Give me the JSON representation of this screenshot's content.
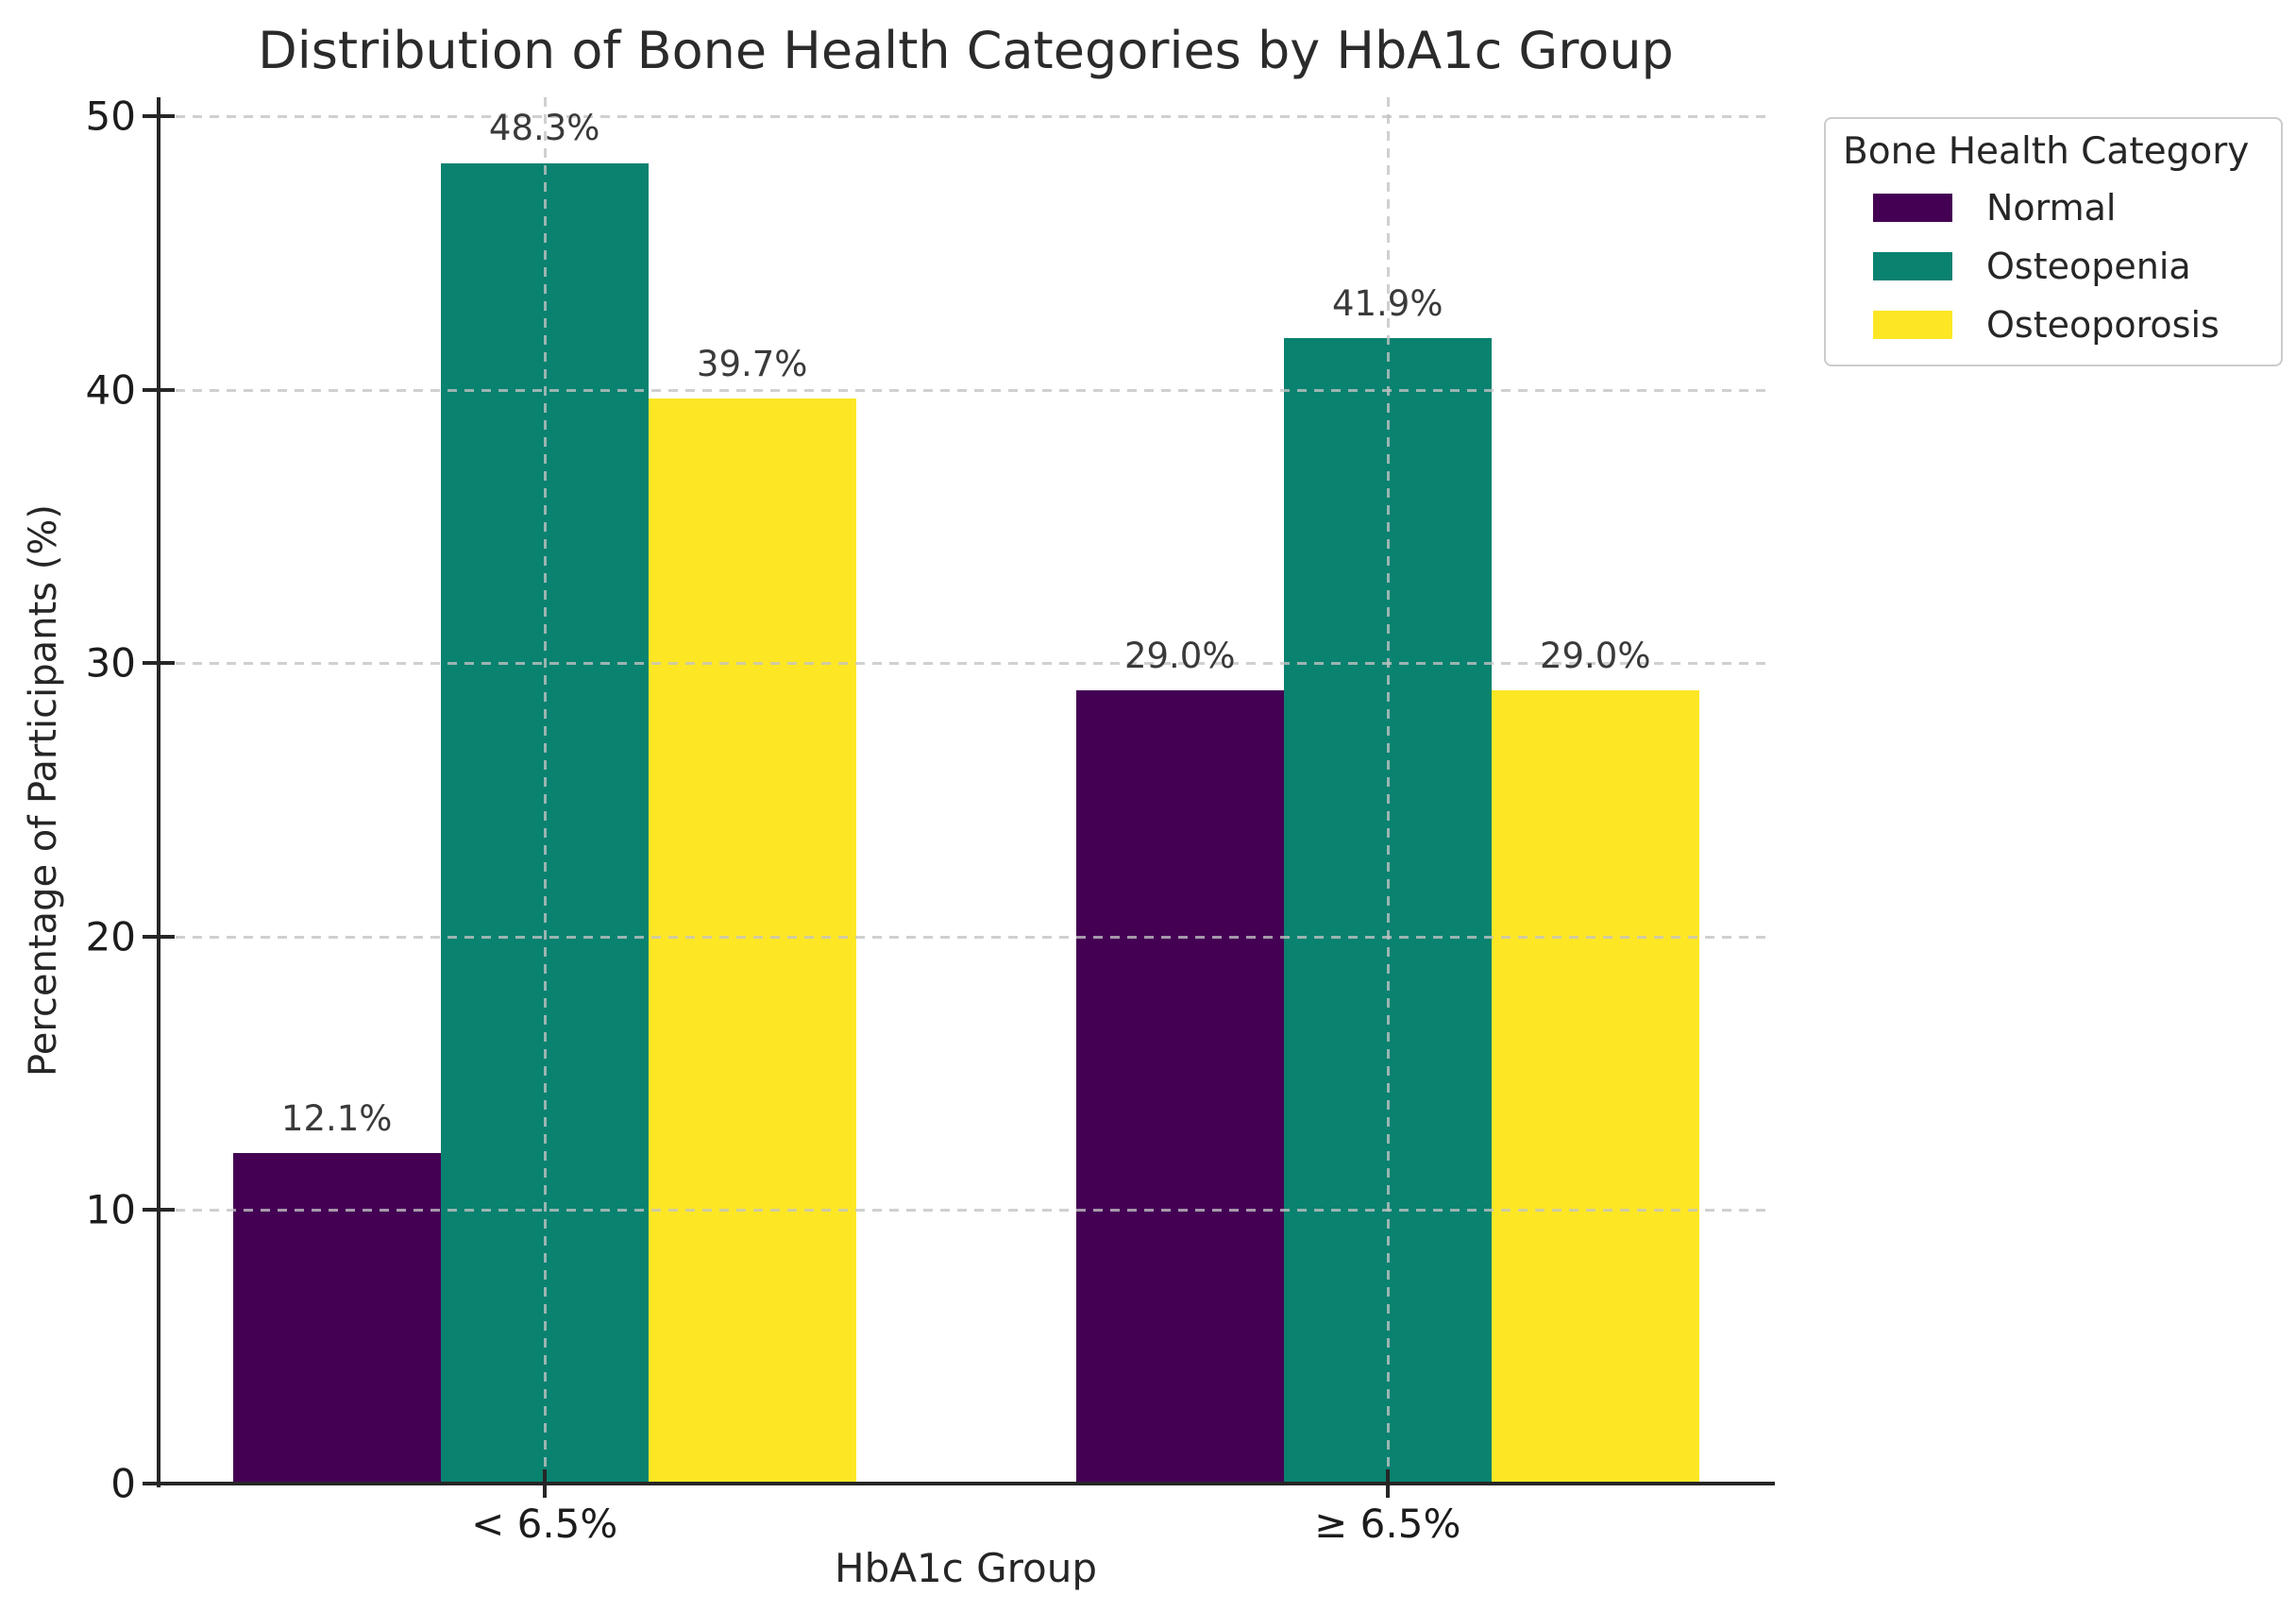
{
  "chart_data": {
    "type": "bar",
    "title": "Distribution of Bone Health Categories by HbA1c Group",
    "xlabel": "HbA1c Group",
    "ylabel": "Percentage of Participants (%)",
    "categories": [
      "< 6.5%",
      "≥ 6.5%"
    ],
    "series": [
      {
        "name": "Normal",
        "color": "#440154",
        "values": [
          12.1,
          29.0
        ],
        "value_labels": [
          "12.1%",
          "29.0%"
        ]
      },
      {
        "name": "Osteopenia",
        "color": "#0a8270",
        "values": [
          48.3,
          41.9
        ],
        "value_labels": [
          "48.3%",
          "41.9%"
        ]
      },
      {
        "name": "Osteoporosis",
        "color": "#fde725",
        "values": [
          39.7,
          29.0
        ],
        "value_labels": [
          "39.7%",
          "29.0%"
        ]
      }
    ],
    "yticks": [
      0,
      10,
      20,
      30,
      40,
      50
    ],
    "ytick_labels": [
      "0",
      "10",
      "20",
      "30",
      "40",
      "50"
    ],
    "ylim": [
      0,
      50.7
    ],
    "grid": "dashed-both-axes",
    "legend": {
      "title": "Bone Health Category",
      "position": "upper-right-outside"
    }
  }
}
